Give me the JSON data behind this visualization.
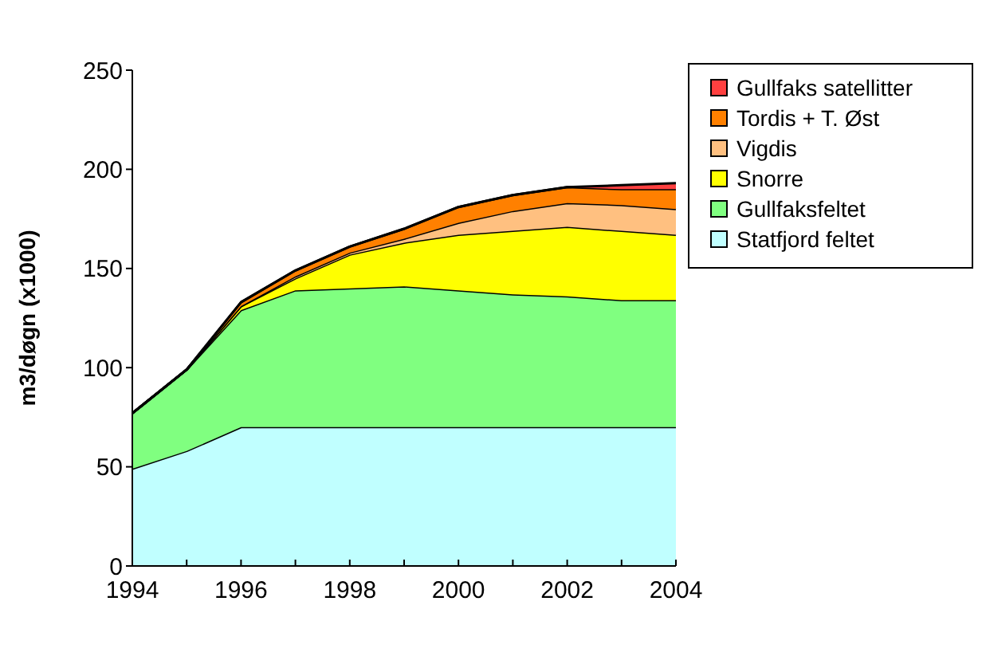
{
  "chart_data": {
    "type": "area",
    "stacked": true,
    "ylabel": "m3/døgn (x1000)",
    "x": [
      1994,
      1995,
      1996,
      1997,
      1998,
      1999,
      2000,
      2001,
      2002,
      2003,
      2004
    ],
    "xlim": [
      1994,
      2004
    ],
    "xticks": [
      1994,
      1996,
      1998,
      2000,
      2002,
      2004
    ],
    "ylim": [
      0,
      250
    ],
    "yticks": [
      0,
      50,
      100,
      150,
      200,
      250
    ],
    "legend": "right",
    "grid": false,
    "series": [
      {
        "name": "Statfjord feltet",
        "color": "#c0ffff",
        "values": [
          49,
          58,
          70,
          70,
          70,
          70,
          70,
          70,
          70,
          70,
          70
        ]
      },
      {
        "name": "Gullfaksfeltet",
        "color": "#80ff80",
        "values": [
          28,
          41,
          59,
          69,
          70,
          71,
          69,
          67,
          66,
          64,
          64
        ]
      },
      {
        "name": "Snorre",
        "color": "#ffff00",
        "values": [
          0,
          0,
          2,
          6,
          17,
          22,
          28,
          32,
          35,
          35,
          33
        ]
      },
      {
        "name": "Vigdis",
        "color": "#ffc080",
        "values": [
          0,
          0,
          0,
          1,
          1,
          2,
          6,
          10,
          12,
          13,
          13
        ]
      },
      {
        "name": "Tordis + T. Øst",
        "color": "#ff8000",
        "values": [
          0,
          0,
          2,
          3,
          3,
          5,
          8,
          8,
          8,
          8,
          10
        ]
      },
      {
        "name": "Gullfaks satellitter",
        "color": "#ff4040",
        "values": [
          0,
          0,
          0,
          0,
          0,
          0,
          0,
          0,
          0,
          2,
          3
        ]
      }
    ]
  }
}
